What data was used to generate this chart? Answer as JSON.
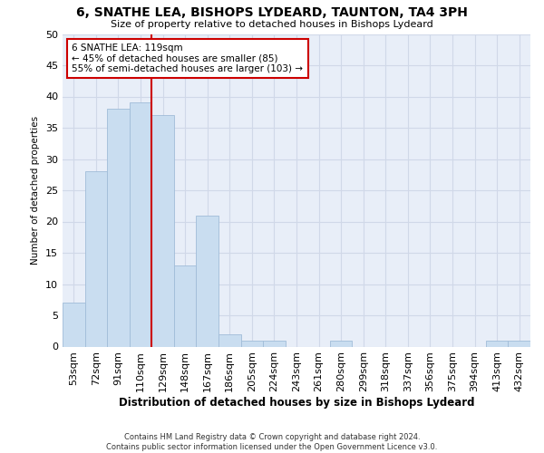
{
  "title": "6, SNATHE LEA, BISHOPS LYDEARD, TAUNTON, TA4 3PH",
  "subtitle": "Size of property relative to detached houses in Bishops Lydeard",
  "xlabel": "Distribution of detached houses by size in Bishops Lydeard",
  "ylabel": "Number of detached properties",
  "categories": [
    "53sqm",
    "72sqm",
    "91sqm",
    "110sqm",
    "129sqm",
    "148sqm",
    "167sqm",
    "186sqm",
    "205sqm",
    "224sqm",
    "243sqm",
    "261sqm",
    "280sqm",
    "299sqm",
    "318sqm",
    "337sqm",
    "356sqm",
    "375sqm",
    "394sqm",
    "413sqm",
    "432sqm"
  ],
  "values": [
    7,
    28,
    38,
    39,
    37,
    13,
    21,
    2,
    1,
    1,
    0,
    0,
    1,
    0,
    0,
    0,
    0,
    0,
    0,
    1,
    1
  ],
  "bar_color": "#c9ddf0",
  "bar_edge_color": "#a0bcd8",
  "vline_x": 3.5,
  "vline_color": "#cc0000",
  "annotation_text": "6 SNATHE LEA: 119sqm\n← 45% of detached houses are smaller (85)\n55% of semi-detached houses are larger (103) →",
  "annotation_box_color": "#ffffff",
  "annotation_box_edge": "#cc0000",
  "ylim": [
    0,
    50
  ],
  "yticks": [
    0,
    5,
    10,
    15,
    20,
    25,
    30,
    35,
    40,
    45,
    50
  ],
  "grid_color": "#d0d8e8",
  "bg_color": "#e8eef8",
  "footer": "Contains HM Land Registry data © Crown copyright and database right 2024.\nContains public sector information licensed under the Open Government Licence v3.0."
}
